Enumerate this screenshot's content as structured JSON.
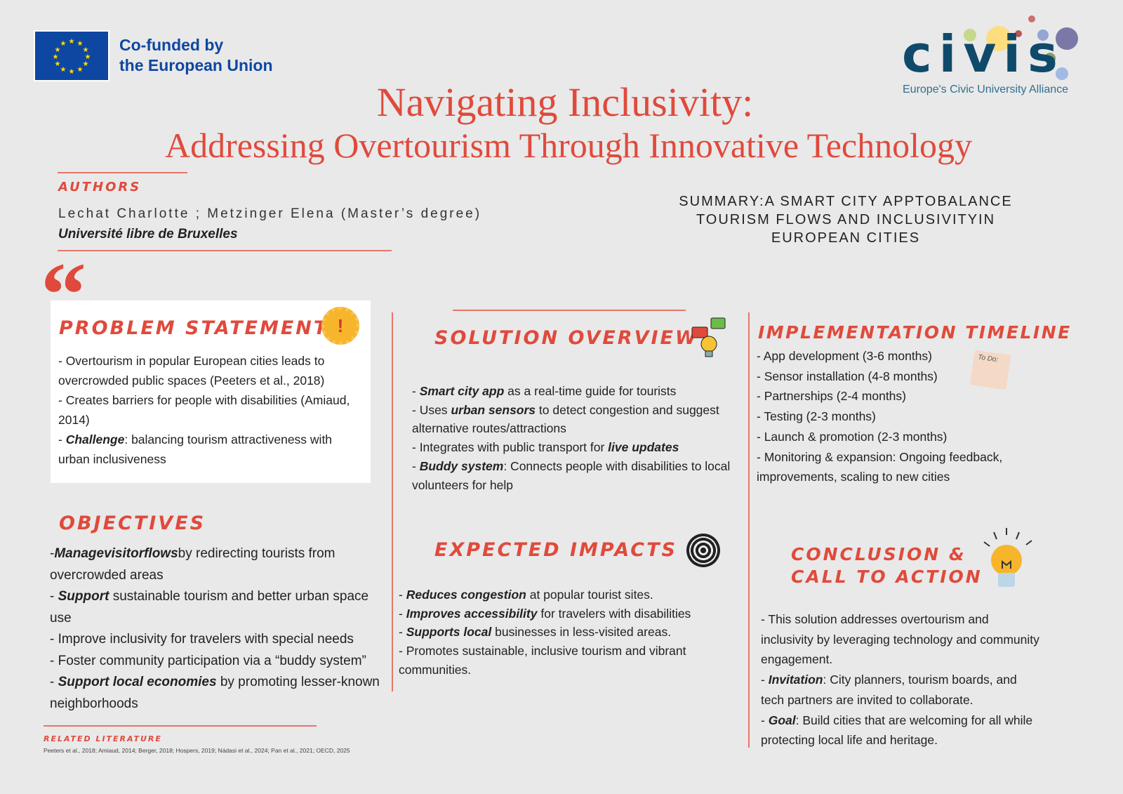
{
  "header": {
    "eu_text_1": "Co-funded by",
    "eu_text_2": "the European Union",
    "civis_logo": "civis",
    "civis_tagline": "Europe's Civic University Alliance",
    "title_line1": "Navigating Inclusivity:",
    "title_line2": "Addressing Overtourism Through Innovative Technology"
  },
  "authors": {
    "heading": "AUTHORS",
    "names": "Lechat Charlotte ; Metzinger Elena (Master’s degree)",
    "university": "Université libre de Bruxelles"
  },
  "summary": {
    "lines": [
      "SUMMARY:A SMART CITY APPTOBALANCE",
      "TOURISM FLOWS AND INCLUSIVITYIN",
      "EUROPEAN CITIES"
    ]
  },
  "colors": {
    "accent": "#e04a3c",
    "background": "#e9e9e9",
    "eu_blue": "#0e47a1"
  },
  "problem": {
    "heading": "PROBLEM STATEMENT",
    "icon": "warning-gear-icon",
    "items": [
      [
        {
          "t": "- Overtourism in popular European cities leads to overcrowded public spaces (Peeters et al., 2018)"
        }
      ],
      [
        {
          "t": "- Creates barriers for people with disabilities (Amiaud, 2014)"
        }
      ],
      [
        {
          "t": "- "
        },
        {
          "t": "Challenge",
          "b": true
        },
        {
          "t": ": balancing tourism attractiveness with urban inclusiveness"
        }
      ]
    ]
  },
  "objectives": {
    "heading": "OBJECTIVES",
    "items": [
      [
        {
          "t": "-"
        },
        {
          "t": "Managevisitorflows",
          "b": true
        },
        {
          "t": "by redirecting tourists from overcrowded areas"
        }
      ],
      [
        {
          "t": "- "
        },
        {
          "t": "Support",
          "b": true
        },
        {
          "t": " sustainable tourism and better urban space use"
        }
      ],
      [
        {
          "t": "- Improve inclusivity for travelers with special needs"
        }
      ],
      [
        {
          "t": "- Foster community participation via a “buddy system”"
        }
      ],
      [
        {
          "t": "- "
        },
        {
          "t": "Support local economies",
          "b": true
        },
        {
          "t": " by promoting lesser-known neighborhoods"
        }
      ]
    ]
  },
  "literature": {
    "heading": "RELATED LITERATURE",
    "text": "Peeters et al., 2018; Amiaud, 2014; Berger, 2018; Hospers, 2019; Nádasi et al., 2024; Pan et al., 2021; OECD, 2025"
  },
  "solution": {
    "heading": "SOLUTION OVERVIEW",
    "icon": "chat-lightbulb-icon",
    "items": [
      [
        {
          "t": "- "
        },
        {
          "t": "Smart city app",
          "b": true
        },
        {
          "t": " as a real-time guide for tourists"
        }
      ],
      [
        {
          "t": "- Uses "
        },
        {
          "t": "urban sensors",
          "b": true
        },
        {
          "t": " to detect congestion and suggest alternative routes/attractions"
        }
      ],
      [
        {
          "t": "- Integrates with public transport for "
        },
        {
          "t": "live updates",
          "b": true
        }
      ],
      [
        {
          "t": "- "
        },
        {
          "t": "Buddy system",
          "b": true
        },
        {
          "t": ": Connects people with disabilities to local volunteers for help"
        }
      ]
    ]
  },
  "impacts": {
    "heading": "EXPECTED IMPACTS",
    "icon": "target-icon",
    "items": [
      [
        {
          "t": "- "
        },
        {
          "t": "Reduces congestion",
          "b": true
        },
        {
          "t": " at popular tourist sites."
        }
      ],
      [
        {
          "t": "- "
        },
        {
          "t": "Improves accessibility",
          "b": true
        },
        {
          "t": " for travelers with disabilities"
        }
      ],
      [
        {
          "t": "- "
        },
        {
          "t": "Supports local",
          "b": true
        },
        {
          "t": " businesses in less-visited areas."
        }
      ],
      [
        {
          "t": "- Promotes sustainable, inclusive tourism and vibrant communities."
        }
      ]
    ]
  },
  "timeline": {
    "heading": "IMPLEMENTATION TIMELINE",
    "icon": "todo-note-icon",
    "todo_label": "To Do:",
    "items": [
      [
        {
          "t": "- App development (3-6 months)"
        }
      ],
      [
        {
          "t": "- Sensor installation (4-8 months)"
        }
      ],
      [
        {
          "t": "- Partnerships (2-4 months)"
        }
      ],
      [
        {
          "t": "- Testing (2-3 months)"
        }
      ],
      [
        {
          "t": "- Launch & promotion (2-3 months)"
        }
      ],
      [
        {
          "t": "- Monitoring & expansion: Ongoing feedback, improvements, scaling to new cities"
        }
      ]
    ]
  },
  "conclusion": {
    "heading_1": "CONCLUSION &",
    "heading_2": "CALL TO ACTION",
    "icon": "lightbulb-icon",
    "items": [
      [
        {
          "t": "- This solution addresses overtourism and inclusivity by leveraging technology and community engagement."
        }
      ],
      [
        {
          "t": "- "
        },
        {
          "t": "Invitation",
          "b": true
        },
        {
          "t": ": City planners, tourism boards, and tech partners are invited to collaborate."
        }
      ],
      [
        {
          "t": "- "
        },
        {
          "t": "Goal",
          "b": true
        },
        {
          "t": ": Build cities that are welcoming for all while protecting local life and heritage."
        }
      ]
    ]
  }
}
